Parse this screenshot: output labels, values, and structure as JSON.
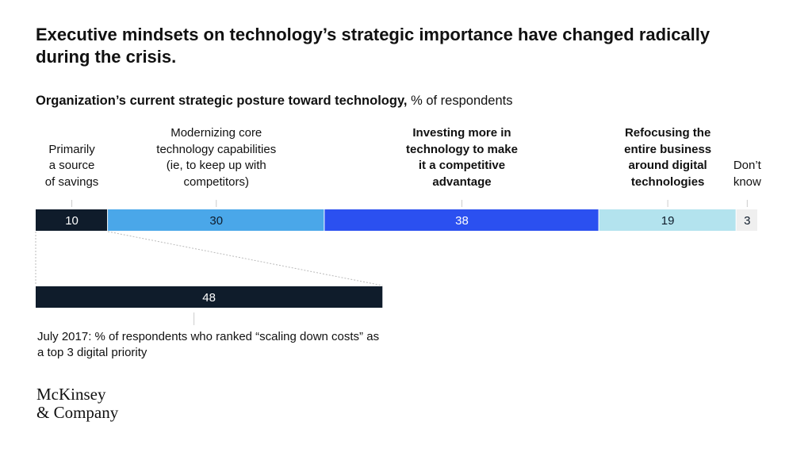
{
  "title": "Executive mindsets on technology’s strategic importance have changed radically during the crisis.",
  "subtitle": {
    "bold": "Organization’s current strategic posture toward technology,",
    "regular": " % of respondents"
  },
  "chart_data": [
    {
      "type": "bar",
      "orientation": "horizontal-stacked",
      "unit": "% of respondents",
      "xlim": [
        0,
        100
      ],
      "categories": [
        "Primarily\na source\nof savings",
        "Modernizing core\ntechnology capabilities\n(ie, to keep up with\ncompetitors)",
        "Investing more in\ntechnology to make\nit a competitive\nadvantage",
        "Refocusing the\nentire business\naround digital\ntechnologies",
        "Don’t\nknow"
      ],
      "values": [
        10,
        30,
        38,
        19,
        3
      ],
      "bold_labels": [
        false,
        false,
        true,
        true,
        false
      ],
      "colors": [
        "#0f1c2b",
        "#4aa7e9",
        "#2b50f0",
        "#b3e3ee",
        "#efefef"
      ],
      "text_colors": [
        "#ffffff",
        "#0f1c2b",
        "#ffffff",
        "#0f1c2b",
        "#0f1c2b"
      ]
    },
    {
      "type": "bar",
      "orientation": "horizontal",
      "unit": "% of respondents",
      "xlim": [
        0,
        100
      ],
      "values": [
        48
      ],
      "colors": [
        "#0f1c2b"
      ],
      "annotation": "July 2017: % of respondents who ranked “scaling down costs” as a top 3 digital priority"
    }
  ],
  "logo": {
    "line1": "McKinsey",
    "line2": "& Company"
  }
}
